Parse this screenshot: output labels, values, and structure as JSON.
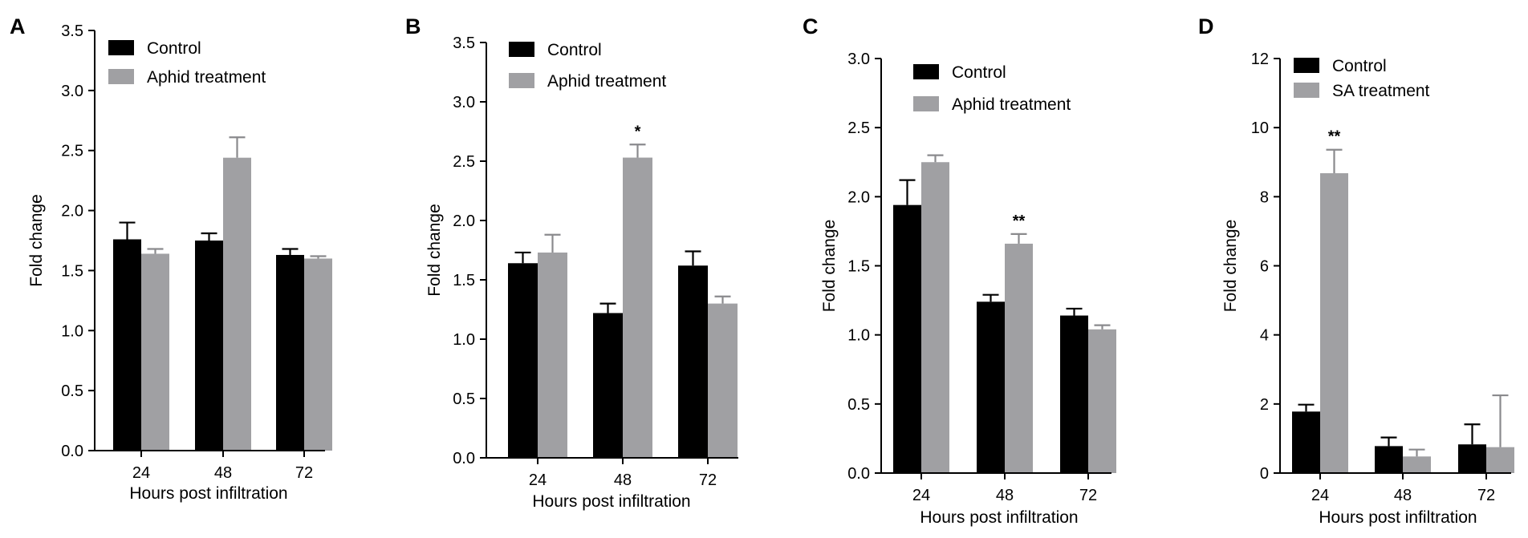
{
  "colors": {
    "control": "#000000",
    "treatment": "#a0a0a3",
    "axis": "#000000"
  },
  "chart_data": [
    {
      "type": "bar",
      "panel": "A",
      "xlabel": "Hours post infiltration",
      "ylabel": "Fold change",
      "ylim": [
        0,
        3.5
      ],
      "yticks": [
        "0.0",
        "0.5",
        "1.0",
        "1.5",
        "2.0",
        "2.5",
        "3.0",
        "3.5"
      ],
      "categories": [
        "24",
        "48",
        "72"
      ],
      "series": [
        {
          "name": "Control",
          "values": [
            1.76,
            1.75,
            1.63
          ],
          "errors": [
            0.14,
            0.06,
            0.05
          ]
        },
        {
          "name": "Aphid treatment",
          "values": [
            1.64,
            2.44,
            1.6
          ],
          "errors": [
            0.04,
            0.17,
            0.02
          ]
        }
      ],
      "significance": [
        "",
        "",
        ""
      ]
    },
    {
      "type": "bar",
      "panel": "B",
      "xlabel": "Hours post infiltration",
      "ylabel": "Fold change",
      "ylim": [
        0,
        3.5
      ],
      "yticks": [
        "0.0",
        "0.5",
        "1.0",
        "1.5",
        "2.0",
        "2.5",
        "3.0",
        "3.5"
      ],
      "categories": [
        "24",
        "48",
        "72"
      ],
      "series": [
        {
          "name": "Control",
          "values": [
            1.64,
            1.22,
            1.62
          ],
          "errors": [
            0.09,
            0.08,
            0.12
          ]
        },
        {
          "name": "Aphid treatment",
          "values": [
            1.73,
            2.53,
            1.3
          ],
          "errors": [
            0.15,
            0.11,
            0.06
          ]
        }
      ],
      "significance": [
        "",
        "*",
        ""
      ]
    },
    {
      "type": "bar",
      "panel": "C",
      "xlabel": "Hours post infiltration",
      "ylabel": "Fold change",
      "ylim": [
        0,
        3.0
      ],
      "yticks": [
        "0.0",
        "0.5",
        "1.0",
        "1.5",
        "2.0",
        "2.5",
        "3.0"
      ],
      "categories": [
        "24",
        "48",
        "72"
      ],
      "series": [
        {
          "name": "Control",
          "values": [
            1.94,
            1.24,
            1.14
          ],
          "errors": [
            0.18,
            0.05,
            0.05
          ]
        },
        {
          "name": "Aphid treatment",
          "values": [
            2.25,
            1.66,
            1.04
          ],
          "errors": [
            0.05,
            0.07,
            0.03
          ]
        }
      ],
      "significance": [
        "",
        "**",
        ""
      ]
    },
    {
      "type": "bar",
      "panel": "D",
      "xlabel": "Hours post infiltration",
      "ylabel": "Fold change",
      "ylim": [
        0,
        12
      ],
      "yticks": [
        "0",
        "2",
        "4",
        "6",
        "8",
        "10",
        "12"
      ],
      "categories": [
        "24",
        "48",
        "72"
      ],
      "series": [
        {
          "name": "Control",
          "values": [
            1.78,
            0.78,
            0.83
          ],
          "errors": [
            0.2,
            0.25,
            0.58
          ]
        },
        {
          "name": "SA treatment",
          "values": [
            8.68,
            0.48,
            0.75
          ],
          "errors": [
            0.68,
            0.2,
            1.5
          ]
        }
      ],
      "significance": [
        "**",
        "",
        ""
      ]
    }
  ]
}
